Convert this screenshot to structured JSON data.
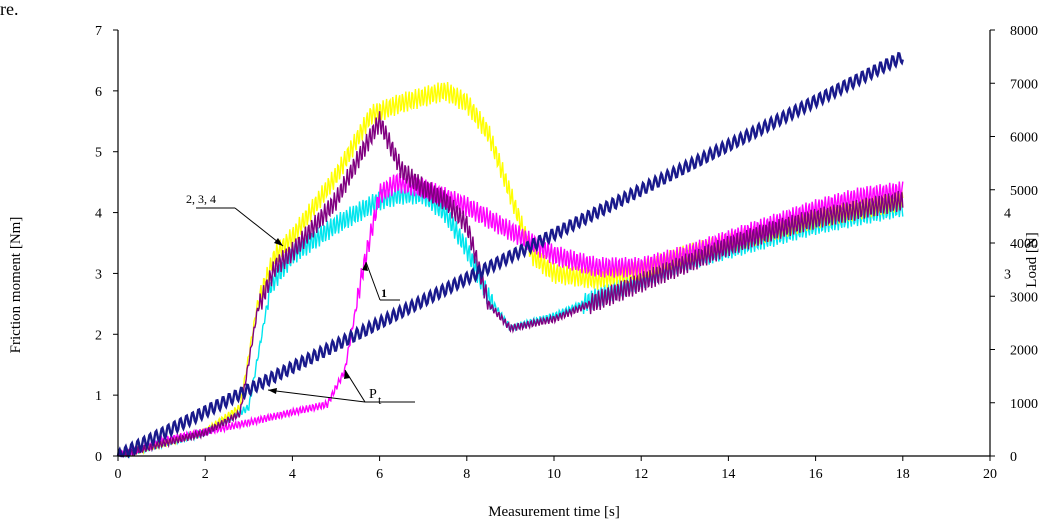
{
  "page": {
    "top_fragment": "re."
  },
  "chart_data": {
    "type": "line",
    "title": "",
    "xlabel": "Measurement time [s]",
    "ylabel": "Friction moment [Nm]",
    "y2label": "Load [N]",
    "xlim": [
      0,
      20
    ],
    "ylim": [
      0,
      7
    ],
    "y2lim": [
      0,
      8000
    ],
    "x_ticks": [
      "0",
      "2",
      "4",
      "6",
      "8",
      "10",
      "12",
      "14",
      "16",
      "18",
      "20"
    ],
    "y_ticks": [
      "0",
      "1",
      "2",
      "3",
      "4",
      "5",
      "6",
      "7"
    ],
    "y2_ticks": [
      "0",
      "1000",
      "2000",
      "3000",
      "4000",
      "5000",
      "6000",
      "7000",
      "8000"
    ],
    "right_axis_fragments": [
      "4",
      "3"
    ],
    "grid": false,
    "annotations": [
      {
        "text": "2, 3, 4",
        "target": "curves 2,3,4 near t=3.7s"
      },
      {
        "text": "1",
        "target": "curve 1 near t=5.7s"
      },
      {
        "text": "P",
        "subscript": "t",
        "target": "load line P_t"
      }
    ],
    "series": [
      {
        "name": "P_t",
        "axis": "right",
        "color": "#1a1a8c",
        "x": [
          0,
          18
        ],
        "y": [
          0,
          7500
        ]
      },
      {
        "name": "1",
        "axis": "left",
        "color": "#ff00ff",
        "x": [
          0,
          1,
          2,
          3,
          4,
          4.8,
          5.2,
          5.6,
          6.0,
          6.4,
          7,
          8,
          9,
          10,
          11,
          12,
          13,
          14,
          15,
          16,
          17,
          18
        ],
        "y": [
          0,
          0.25,
          0.4,
          0.55,
          0.72,
          0.85,
          1.4,
          3.0,
          4.3,
          4.5,
          4.4,
          4.1,
          3.7,
          3.3,
          3.1,
          3.1,
          3.3,
          3.55,
          3.8,
          4.05,
          4.25,
          4.35
        ]
      },
      {
        "name": "2",
        "axis": "left",
        "color": "#ffff00",
        "x": [
          0,
          1,
          2,
          2.8,
          3.2,
          3.6,
          4,
          5,
          5.8,
          6.5,
          7,
          7.5,
          8,
          8.5,
          9,
          9.5,
          10,
          11,
          12,
          13,
          14,
          15,
          16,
          17,
          18
        ],
        "y": [
          0,
          0.2,
          0.4,
          0.8,
          2.5,
          3.3,
          3.6,
          4.6,
          5.6,
          5.8,
          5.9,
          6.0,
          5.8,
          5.3,
          4.3,
          3.3,
          3.0,
          2.9,
          3.05,
          3.3,
          3.5,
          3.7,
          3.9,
          4.05,
          4.2
        ]
      },
      {
        "name": "3",
        "axis": "left",
        "color": "#800080",
        "x": [
          0,
          1,
          2,
          2.8,
          3.2,
          3.6,
          4,
          5,
          5.6,
          6.0,
          6.5,
          7,
          7.5,
          8,
          8.5,
          9,
          10,
          11,
          12,
          13,
          14,
          15,
          16,
          17,
          18
        ],
        "y": [
          0,
          0.2,
          0.38,
          0.7,
          2.4,
          3.1,
          3.35,
          4.2,
          5.0,
          5.5,
          4.7,
          4.4,
          4.2,
          3.8,
          2.5,
          2.1,
          2.25,
          2.55,
          2.85,
          3.15,
          3.45,
          3.7,
          3.9,
          4.05,
          4.2
        ]
      },
      {
        "name": "4",
        "axis": "left",
        "color": "#00e5ee",
        "x": [
          0,
          1,
          2,
          3,
          3.5,
          4,
          5,
          6,
          6.5,
          7,
          7.5,
          8,
          8.5,
          9,
          10,
          11,
          12,
          13,
          14,
          15,
          16,
          17,
          18
        ],
        "y": [
          0,
          0.2,
          0.38,
          0.8,
          2.8,
          3.3,
          3.8,
          4.2,
          4.3,
          4.3,
          4.0,
          3.4,
          2.6,
          2.1,
          2.3,
          2.6,
          2.9,
          3.2,
          3.4,
          3.6,
          3.8,
          3.95,
          4.1
        ]
      }
    ]
  }
}
